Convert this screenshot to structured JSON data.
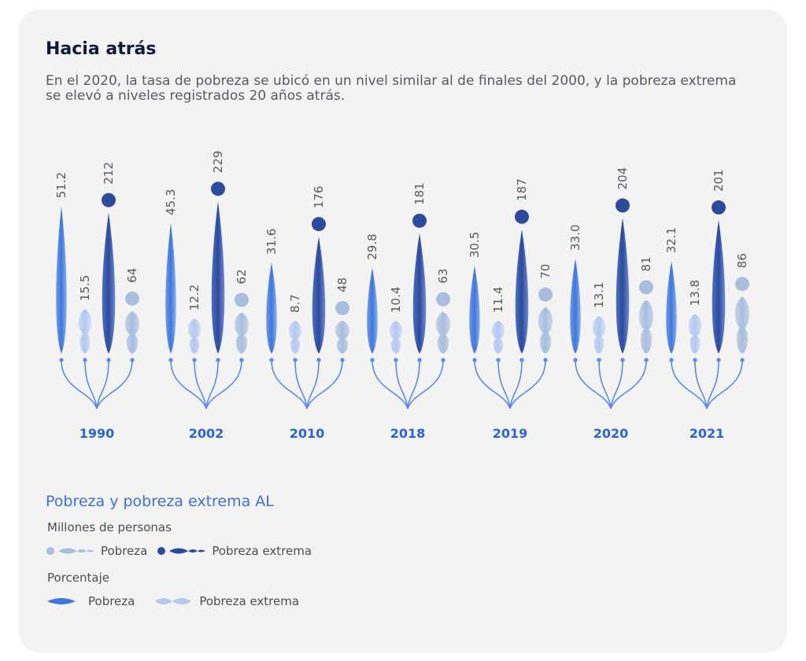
{
  "header": {
    "title": "Hacia atrás",
    "subtitle": "En el 2020, la tasa de pobreza se ubicó en un nivel similar al de finales del 2000, y la pobreza extrema se elevó a niveles registrados 20 años atrás."
  },
  "colors": {
    "year_label": "#2a63d6",
    "poverty_rate": "#3f77dc",
    "extreme_rate": "#b3c8ef",
    "poverty_people": "#a7bedf",
    "extreme_people": "#2d4a9c",
    "connector": "#5a8ae6",
    "value_text": "#555a63"
  },
  "chart_data": {
    "type": "glyph",
    "categories": [
      "1990",
      "2002",
      "2010",
      "2018",
      "2019",
      "2020",
      "2021"
    ],
    "series": [
      {
        "name": "Pobreza (%)",
        "values": [
          51.2,
          45.3,
          31.6,
          29.8,
          30.5,
          33.0,
          32.1
        ],
        "labels": [
          "51.2",
          "45.3",
          "31.6",
          "29.8",
          "30.5",
          "33.0",
          "32.1"
        ]
      },
      {
        "name": "Pobreza extrema (%)",
        "values": [
          15.5,
          12.2,
          8.7,
          10.4,
          11.4,
          13.1,
          13.8
        ],
        "labels": [
          "15.5",
          "12.2",
          "8.7",
          "10.4",
          "11.4",
          "13.1",
          "13.8"
        ]
      },
      {
        "name": "Pobreza (millones de personas)",
        "values": [
          212,
          229,
          176,
          181,
          187,
          204,
          201
        ],
        "labels": [
          "212",
          "229",
          "176",
          "181",
          "187",
          "204",
          "201"
        ]
      },
      {
        "name": "Pobreza extrema (millones de personas)",
        "values": [
          64,
          62,
          48,
          63,
          70,
          81,
          86
        ],
        "labels": [
          "64",
          "62",
          "48",
          "63",
          "70",
          "81",
          "86"
        ]
      }
    ]
  },
  "legend": {
    "title": "Pobreza y pobreza extrema AL",
    "people_heading": "Millones de personas",
    "people_poverty": "Pobreza",
    "people_extreme": "Pobreza extrema",
    "percent_heading": "Porcentaje",
    "percent_poverty": "Pobreza",
    "percent_extreme": "Pobreza extrema"
  }
}
